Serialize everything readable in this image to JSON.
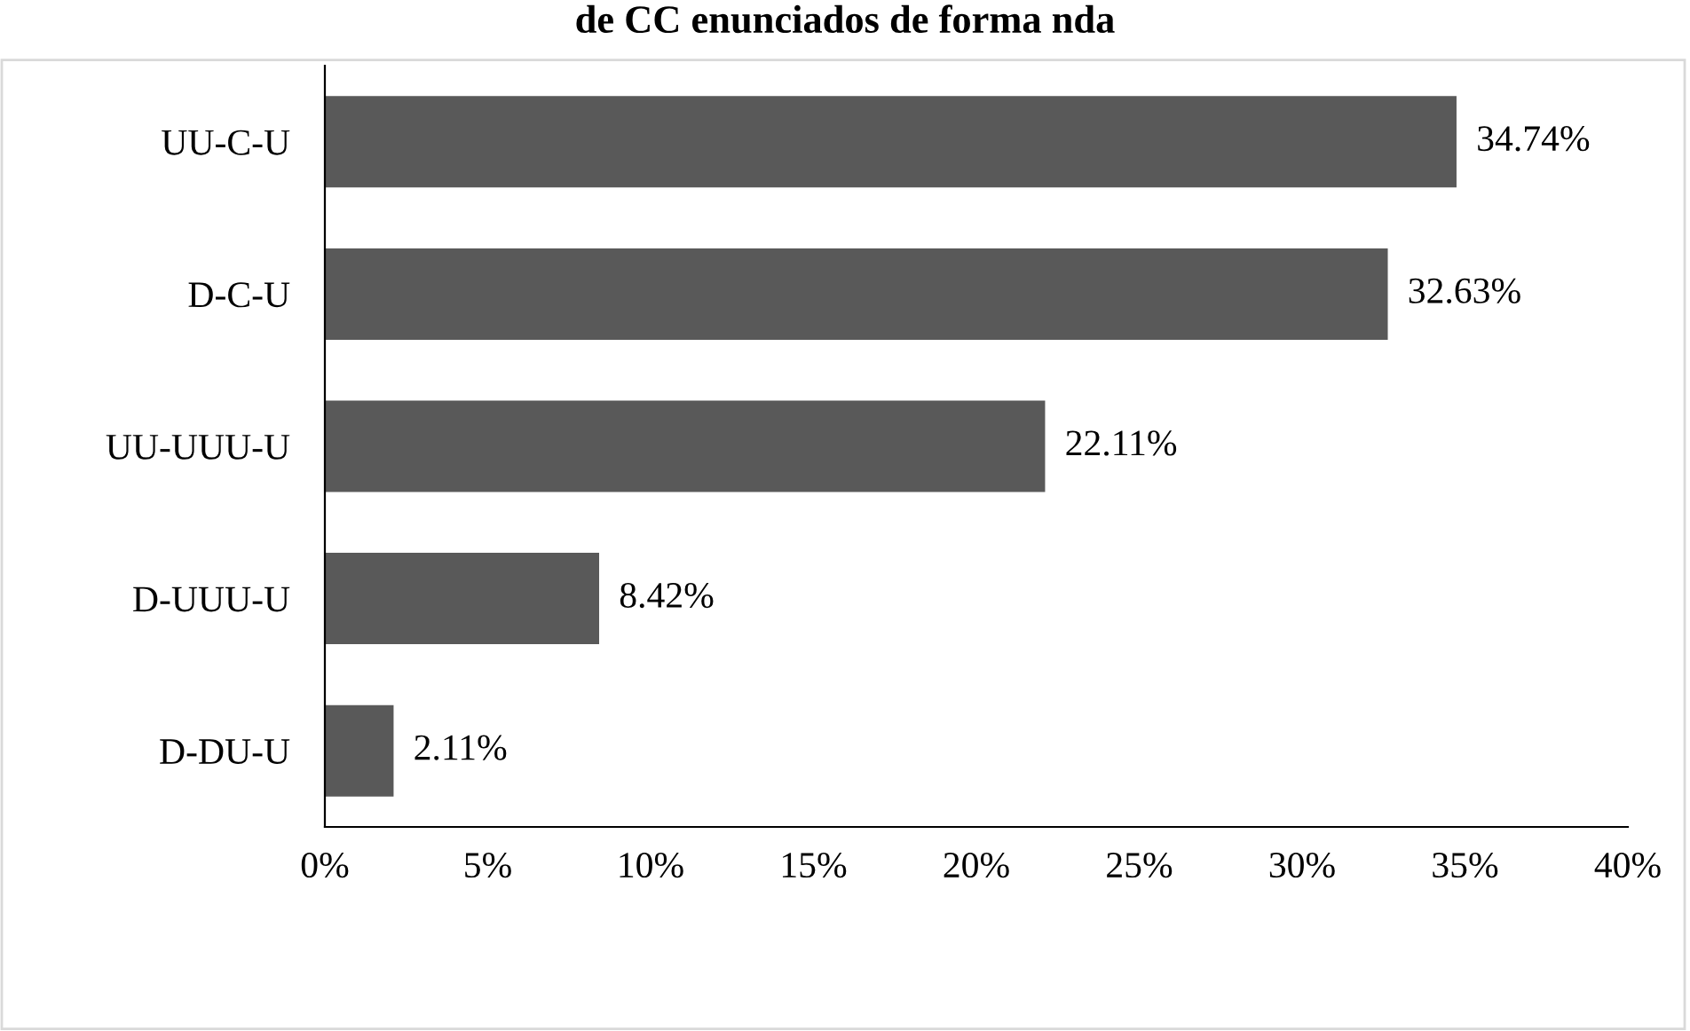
{
  "chart_data": {
    "type": "bar",
    "orientation": "horizontal",
    "title": "de CC enunciados de forma nda",
    "categories": [
      "UU-C-U",
      "D-C-U",
      "UU-UUU-U",
      "D-UUU-U",
      "D-DU-U"
    ],
    "values": [
      34.74,
      32.63,
      22.11,
      8.42,
      2.11
    ],
    "value_labels": [
      "34.74%",
      "32.63%",
      "22.11%",
      "8.42%",
      "2.11%"
    ],
    "color": "#595959",
    "xlim": [
      0,
      40
    ],
    "xticks": [
      {
        "value": 0,
        "label": "0%"
      },
      {
        "value": 5,
        "label": "5%"
      },
      {
        "value": 10,
        "label": "10%"
      },
      {
        "value": 15,
        "label": "15%"
      },
      {
        "value": 20,
        "label": "20%"
      },
      {
        "value": 25,
        "label": "25%"
      },
      {
        "value": 30,
        "label": "30%"
      },
      {
        "value": 35,
        "label": "35%"
      },
      {
        "value": 40,
        "label": "40%"
      }
    ],
    "grid": false,
    "legend": false
  }
}
